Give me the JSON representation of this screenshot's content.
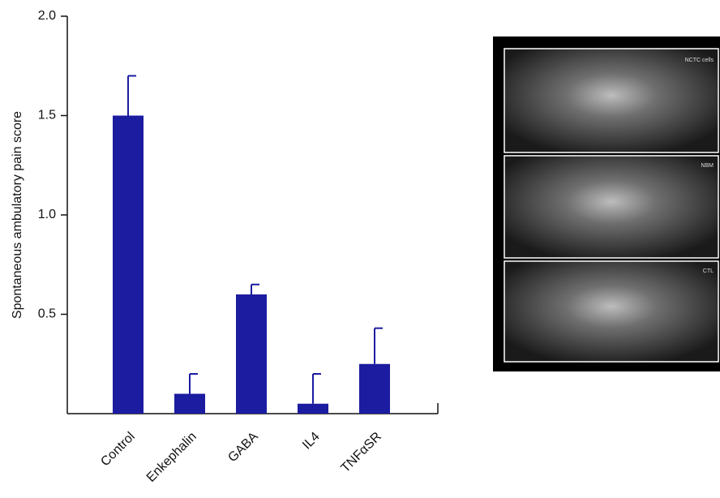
{
  "chart_data": {
    "type": "bar",
    "y_label": "Spontaneous ambulatory pain score",
    "categories": [
      "Control",
      "Enkephalin",
      "GABA",
      "IL4",
      "TNFαSR"
    ],
    "values": [
      1.5,
      0.1,
      0.6,
      0.05,
      0.25
    ],
    "errors": [
      0.2,
      0.1,
      0.05,
      0.15,
      0.18
    ],
    "color": "#1c1ca0",
    "ylim": [
      0,
      2
    ],
    "yticks": [
      0.5,
      {
        "value": 1,
        "label": "1.0"
      },
      1.5,
      {
        "value": 2,
        "label": "2.0"
      }
    ],
    "grid": false
  },
  "image_panel": {
    "labels": [
      "NCTC cells",
      "NBM",
      "CTL"
    ]
  }
}
